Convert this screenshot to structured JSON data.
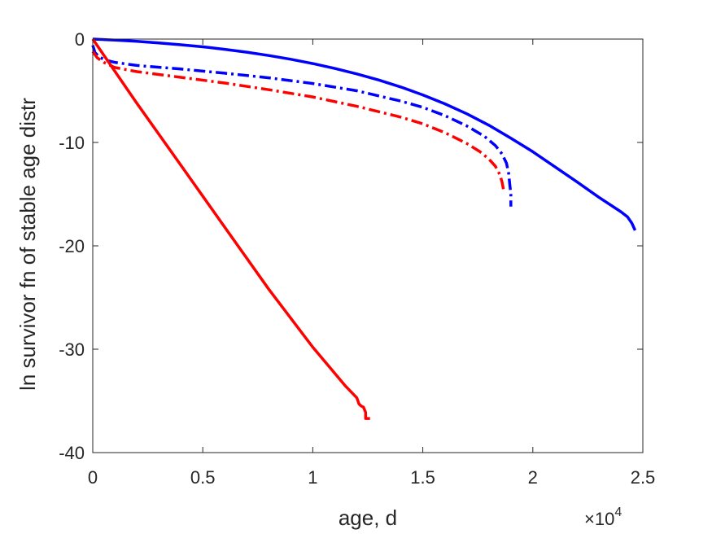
{
  "chart_data": {
    "type": "line",
    "title": "",
    "xlabel": "age, d",
    "ylabel": "ln survivor fn of stable age distr",
    "x_exponent_label": "×10",
    "x_exponent_power": "4",
    "x_multiplier": 10000,
    "xlim": [
      0,
      25000
    ],
    "ylim": [
      -40,
      0
    ],
    "xticks": [
      0,
      5000,
      10000,
      15000,
      20000,
      25000
    ],
    "xtick_labels": [
      "0",
      "0.5",
      "1",
      "1.5",
      "2",
      "2.5"
    ],
    "yticks": [
      0,
      -10,
      -20,
      -30,
      -40
    ],
    "ytick_labels": [
      "0",
      "-10",
      "-20",
      "-30",
      "-40"
    ],
    "grid": false,
    "legend": null,
    "series": [
      {
        "color": "#0000ff",
        "style": "solid",
        "points": [
          [
            0,
            0
          ],
          [
            1000,
            -0.1
          ],
          [
            2000,
            -0.22
          ],
          [
            3000,
            -0.37
          ],
          [
            4000,
            -0.55
          ],
          [
            5000,
            -0.75
          ],
          [
            6000,
            -0.99
          ],
          [
            7000,
            -1.27
          ],
          [
            8000,
            -1.59
          ],
          [
            9000,
            -1.95
          ],
          [
            10000,
            -2.37
          ],
          [
            11000,
            -2.84
          ],
          [
            12000,
            -3.37
          ],
          [
            13000,
            -3.96
          ],
          [
            14000,
            -4.64
          ],
          [
            15000,
            -5.4
          ],
          [
            16000,
            -6.26
          ],
          [
            17000,
            -7.23
          ],
          [
            18000,
            -8.33
          ],
          [
            19000,
            -9.58
          ],
          [
            20000,
            -10.9
          ],
          [
            21000,
            -12.35
          ],
          [
            22000,
            -13.8
          ],
          [
            23000,
            -15.3
          ],
          [
            24000,
            -16.7
          ],
          [
            24300,
            -17.2
          ],
          [
            24500,
            -17.8
          ],
          [
            24650,
            -18.5
          ]
        ]
      },
      {
        "color": "#0000ff",
        "style": "dashdot",
        "points": [
          [
            0,
            -0.6
          ],
          [
            100,
            -1.3
          ],
          [
            300,
            -1.75
          ],
          [
            600,
            -2.05
          ],
          [
            1000,
            -2.25
          ],
          [
            2000,
            -2.55
          ],
          [
            4000,
            -2.9
          ],
          [
            6000,
            -3.3
          ],
          [
            8000,
            -3.75
          ],
          [
            10000,
            -4.3
          ],
          [
            12000,
            -5.0
          ],
          [
            14000,
            -6.0
          ],
          [
            15000,
            -6.6
          ],
          [
            16000,
            -7.4
          ],
          [
            17000,
            -8.4
          ],
          [
            17800,
            -9.4
          ],
          [
            18300,
            -10.3
          ],
          [
            18600,
            -11.1
          ],
          [
            18800,
            -12.0
          ],
          [
            18900,
            -13.0
          ],
          [
            18950,
            -14.0
          ],
          [
            19000,
            -15.0
          ],
          [
            19000,
            -16.2
          ]
        ]
      },
      {
        "color": "#ff0000",
        "style": "dashdot",
        "points": [
          [
            0,
            -1.2
          ],
          [
            200,
            -1.8
          ],
          [
            500,
            -2.25
          ],
          [
            1000,
            -2.75
          ],
          [
            2000,
            -3.15
          ],
          [
            4000,
            -3.7
          ],
          [
            6000,
            -4.25
          ],
          [
            8000,
            -4.9
          ],
          [
            10000,
            -5.6
          ],
          [
            12000,
            -6.5
          ],
          [
            14000,
            -7.55
          ],
          [
            15000,
            -8.2
          ],
          [
            16000,
            -9.05
          ],
          [
            17000,
            -10.1
          ],
          [
            17600,
            -10.9
          ],
          [
            18000,
            -11.6
          ],
          [
            18300,
            -12.3
          ],
          [
            18500,
            -13.1
          ],
          [
            18600,
            -13.8
          ],
          [
            18700,
            -14.9
          ]
        ]
      },
      {
        "color": "#ff0000",
        "style": "solid",
        "points": [
          [
            0,
            0
          ],
          [
            2000,
            -6.2
          ],
          [
            4000,
            -12.2
          ],
          [
            6000,
            -18.2
          ],
          [
            8000,
            -24.2
          ],
          [
            10000,
            -29.8
          ],
          [
            11500,
            -33.6
          ],
          [
            12000,
            -34.7
          ],
          [
            12100,
            -35.3
          ],
          [
            12200,
            -35.5
          ],
          [
            12300,
            -35.6
          ],
          [
            12400,
            -36.1
          ],
          [
            12400,
            -36.7
          ],
          [
            12600,
            -36.7
          ]
        ]
      }
    ]
  }
}
